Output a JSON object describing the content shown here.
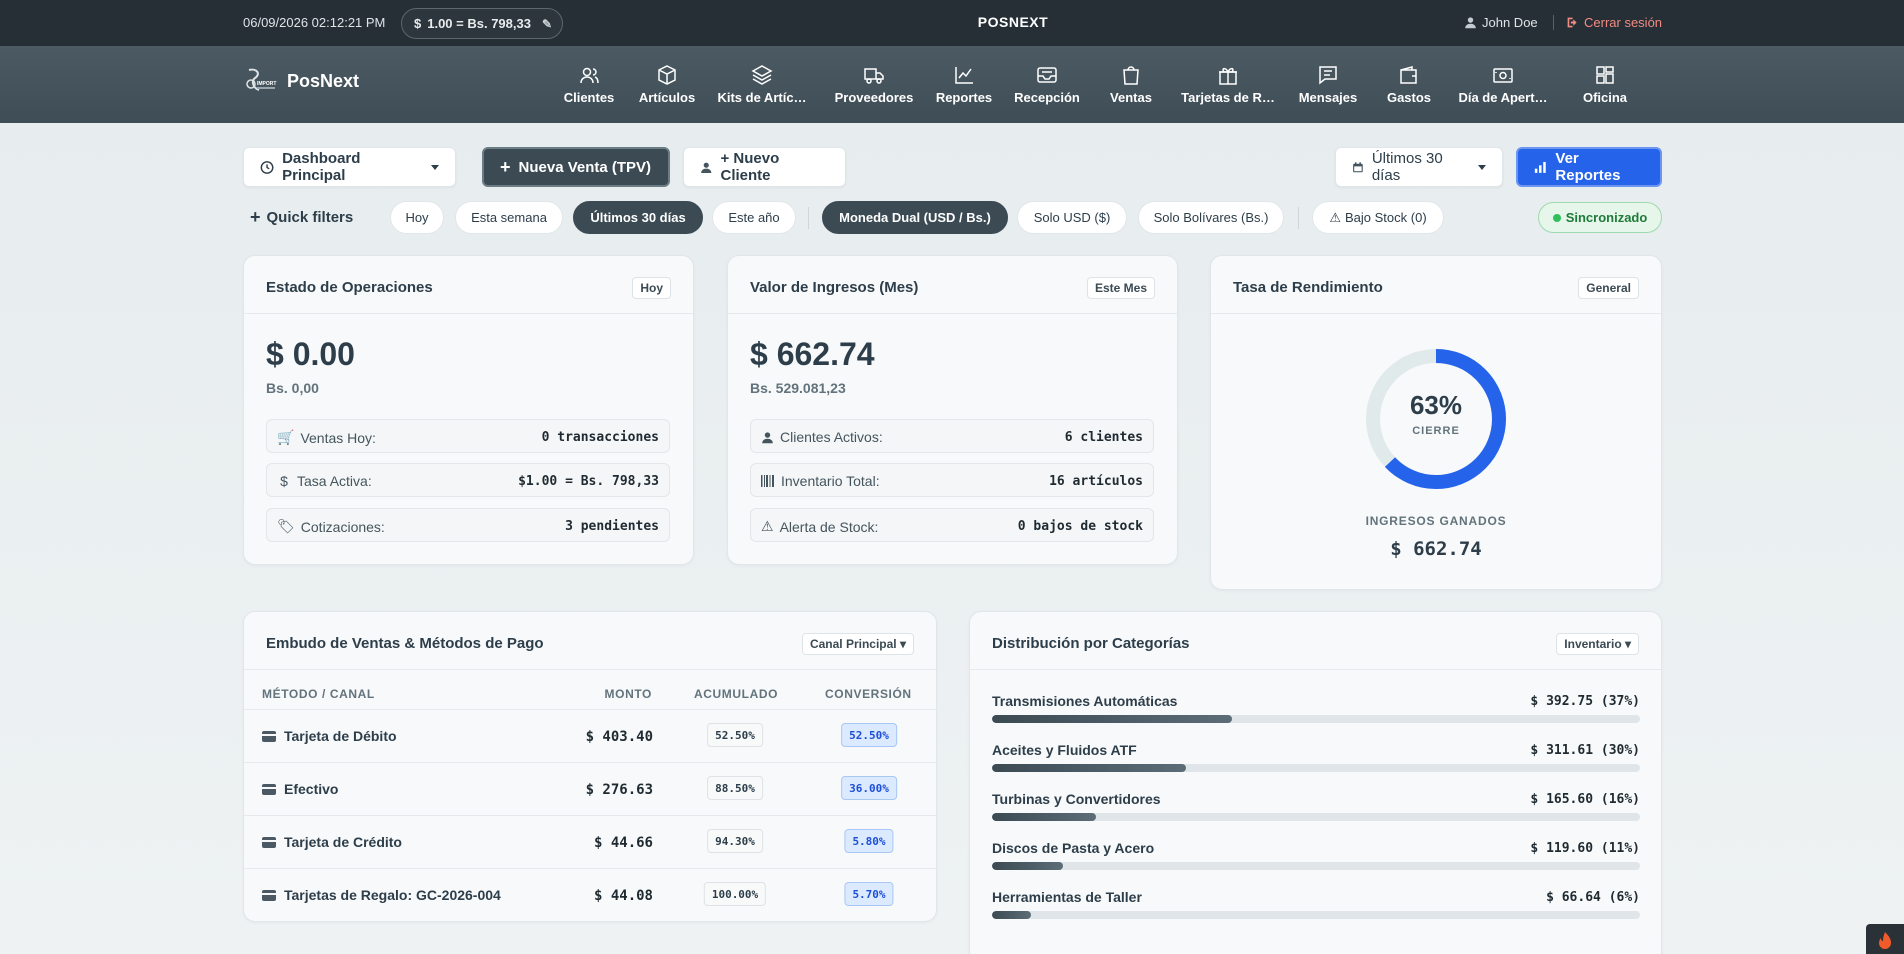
{
  "topbar": {
    "datetime": "06/09/2026 02:12:21 PM",
    "rate_chip": "1.00 = Bs. 798,33",
    "rate_symbol": "$",
    "title": "POSNEXT",
    "user": "John Doe",
    "logout": "Cerrar sesión"
  },
  "brand": {
    "name": "PosNext",
    "logo_text": "IMPORT"
  },
  "nav": [
    {
      "label": "Clientes",
      "icon": "users-icon"
    },
    {
      "label": "Artículos",
      "icon": "box-icon"
    },
    {
      "label": "Kits de Artíc…",
      "icon": "layers-icon"
    },
    {
      "label": "Proveedores",
      "icon": "truck-icon"
    },
    {
      "label": "Reportes",
      "icon": "chart-line-icon"
    },
    {
      "label": "Recepción",
      "icon": "inbox-icon"
    },
    {
      "label": "Ventas",
      "icon": "shopping-bag-icon"
    },
    {
      "label": "Tarjetas de R…",
      "icon": "gift-icon"
    },
    {
      "label": "Mensajes",
      "icon": "message-icon"
    },
    {
      "label": "Gastos",
      "icon": "wallet-icon"
    },
    {
      "label": "Día de Apert…",
      "icon": "cash-register-icon"
    },
    {
      "label": "Oficina",
      "icon": "grid-icon"
    }
  ],
  "toolbar": {
    "dashboard_select": "Dashboard Principal",
    "new_sale": "Nueva Venta (TPV)",
    "new_client": "+ Nuevo Cliente",
    "range_select": "Últimos 30 días",
    "reports": "Ver Reportes"
  },
  "filters": {
    "label": "Quick filters",
    "period": [
      "Hoy",
      "Esta semana",
      "Últimos 30 días",
      "Este año"
    ],
    "period_active": "Últimos 30 días",
    "currency": [
      "Moneda Dual (USD / Bs.)",
      "Solo USD ($)",
      "Solo Bolívares (Bs.)"
    ],
    "currency_active": "Moneda Dual (USD / Bs.)",
    "stock": "Bajo Stock (0)",
    "sync": "Sincronizado"
  },
  "ops": {
    "title": "Estado de Operaciones",
    "tag": "Hoy",
    "amount": "$ 0.00",
    "amount_bs": "Bs. 0,00",
    "rows": [
      {
        "k": "Ventas Hoy:",
        "v": "0 transacciones",
        "icon": "cart-icon"
      },
      {
        "k": "Tasa Activa:",
        "v": "$1.00 = Bs. 798,33",
        "icon": "dollar-icon"
      },
      {
        "k": "Cotizaciones:",
        "v": "3 pendientes",
        "icon": "tag-icon"
      }
    ]
  },
  "income": {
    "title": "Valor de Ingresos (Mes)",
    "tag": "Este Mes",
    "amount": "$ 662.74",
    "amount_bs": "Bs. 529.081,23",
    "rows": [
      {
        "k": "Clientes Activos:",
        "v": "6 clientes",
        "icon": "user-icon"
      },
      {
        "k": "Inventario Total:",
        "v": "16 artículos",
        "icon": "barcode-icon"
      },
      {
        "k": "Alerta de Stock:",
        "v": "0 bajos de stock",
        "icon": "warning-icon"
      }
    ]
  },
  "perf": {
    "title": "Tasa de Rendimiento",
    "tag": "General",
    "percent": "63%",
    "percent_value": 0.63,
    "percent_label": "CIERRE",
    "earned_label": "INGRESOS GANADOS",
    "earned_value": "$ 662.74",
    "ring_color": "#2563eb"
  },
  "funnel": {
    "title": "Embudo de Ventas & Métodos de Pago",
    "tag": "Canal Principal ▾",
    "headers": [
      "MÉTODO / CANAL",
      "MONTO",
      "ACUMULADO",
      "CONVERSIÓN"
    ],
    "rows": [
      {
        "name": "Tarjeta de Débito",
        "monto": "$ 403.40",
        "acc": "52.50%",
        "conv": "52.50%"
      },
      {
        "name": "Efectivo",
        "monto": "$ 276.63",
        "acc": "88.50%",
        "conv": "36.00%"
      },
      {
        "name": "Tarjeta de Crédito",
        "monto": "$ 44.66",
        "acc": "94.30%",
        "conv": "5.80%"
      },
      {
        "name": "Tarjetas de Regalo: GC-2026-004",
        "monto": "$ 44.08",
        "acc": "100.00%",
        "conv": "5.70%"
      }
    ]
  },
  "categories": {
    "title": "Distribución por Categorías",
    "tag": "Inventario ▾",
    "items": [
      {
        "name": "Transmisiones Automáticas",
        "value": "$ 392.75 (37%)",
        "share": 0.37
      },
      {
        "name": "Aceites y Fluidos ATF",
        "value": "$ 311.61 (30%)",
        "share": 0.3
      },
      {
        "name": "Turbinas y Convertidores",
        "value": "$ 165.60 (16%)",
        "share": 0.16
      },
      {
        "name": "Discos de Pasta y Acero",
        "value": "$ 119.60 (11%)",
        "share": 0.11
      },
      {
        "name": "Herramientas de Taller",
        "value": "$ 66.64 (6%)",
        "share": 0.06
      }
    ]
  },
  "colors": {
    "accent": "#2563eb",
    "dark": "#3b4a53",
    "topbar": "#262f35",
    "sync": "#2fbf5b",
    "logout": "#f28b82"
  }
}
